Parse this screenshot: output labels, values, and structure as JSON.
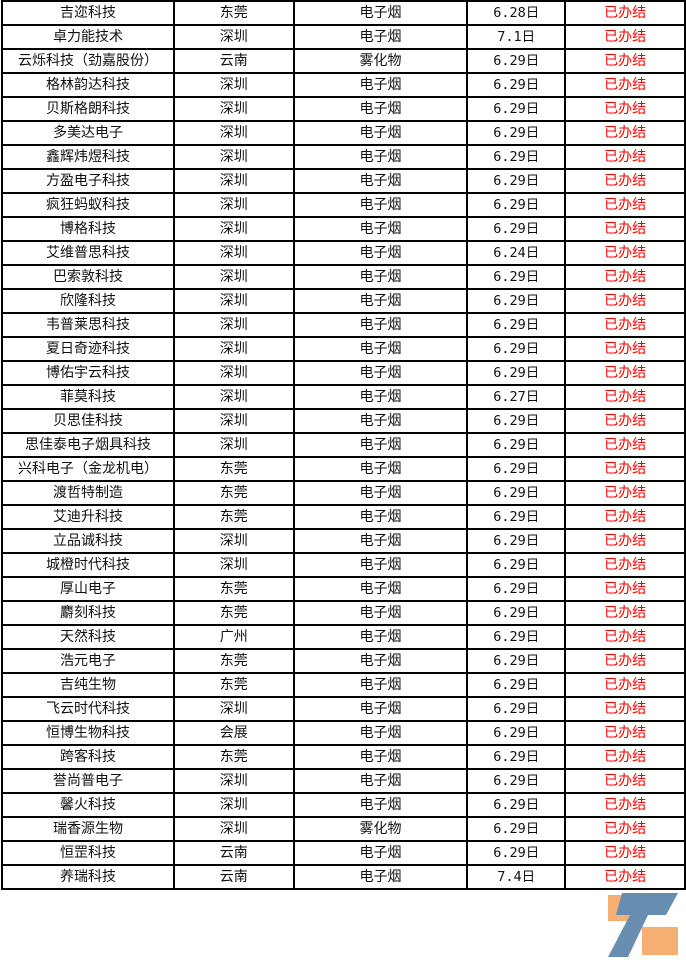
{
  "status_color": "#ff0000",
  "watermark_icon": "z-logo-watermark",
  "rows": [
    [
      "吉迩科技",
      "东莞",
      "电子烟",
      "6.28日",
      "已办结"
    ],
    [
      "卓力能技术",
      "深圳",
      "电子烟",
      "7.1日",
      "已办结"
    ],
    [
      "云烁科技（劲嘉股份）",
      "云南",
      "雾化物",
      "6.29日",
      "已办结"
    ],
    [
      "格林韵达科技",
      "深圳",
      "电子烟",
      "6.29日",
      "已办结"
    ],
    [
      "贝斯格朗科技",
      "深圳",
      "电子烟",
      "6.29日",
      "已办结"
    ],
    [
      "多美达电子",
      "深圳",
      "电子烟",
      "6.29日",
      "已办结"
    ],
    [
      "鑫辉炜煜科技",
      "深圳",
      "电子烟",
      "6.29日",
      "已办结"
    ],
    [
      "方盈电子科技",
      "深圳",
      "电子烟",
      "6.29日",
      "已办结"
    ],
    [
      "疯狂蚂蚁科技",
      "深圳",
      "电子烟",
      "6.29日",
      "已办结"
    ],
    [
      "博格科技",
      "深圳",
      "电子烟",
      "6.29日",
      "已办结"
    ],
    [
      "艾维普思科技",
      "深圳",
      "电子烟",
      "6.24日",
      "已办结"
    ],
    [
      "巴索敦科技",
      "深圳",
      "电子烟",
      "6.29日",
      "已办结"
    ],
    [
      "欣隆科技",
      "深圳",
      "电子烟",
      "6.29日",
      "已办结"
    ],
    [
      "韦普莱思科技",
      "深圳",
      "电子烟",
      "6.29日",
      "已办结"
    ],
    [
      "夏日奇迹科技",
      "深圳",
      "电子烟",
      "6.29日",
      "已办结"
    ],
    [
      "博佑宇云科技",
      "深圳",
      "电子烟",
      "6.29日",
      "已办结"
    ],
    [
      "菲莫科技",
      "深圳",
      "电子烟",
      "6.27日",
      "已办结"
    ],
    [
      "贝思佳科技",
      "深圳",
      "电子烟",
      "6.29日",
      "已办结"
    ],
    [
      "思佳泰电子烟具科技",
      "深圳",
      "电子烟",
      "6.29日",
      "已办结"
    ],
    [
      "兴科电子（金龙机电）",
      "东莞",
      "电子烟",
      "6.29日",
      "已办结"
    ],
    [
      "渡哲特制造",
      "东莞",
      "电子烟",
      "6.29日",
      "已办结"
    ],
    [
      "艾迪升科技",
      "东莞",
      "电子烟",
      "6.29日",
      "已办结"
    ],
    [
      "立品诚科技",
      "深圳",
      "电子烟",
      "6.29日",
      "已办结"
    ],
    [
      "城橙时代科技",
      "深圳",
      "电子烟",
      "6.29日",
      "已办结"
    ],
    [
      "厚山电子",
      "东莞",
      "电子烟",
      "6.29日",
      "已办结"
    ],
    [
      "麝刻科技",
      "东莞",
      "电子烟",
      "6.29日",
      "已办结"
    ],
    [
      "天然科技",
      "广州",
      "电子烟",
      "6.29日",
      "已办结"
    ],
    [
      "浩元电子",
      "东莞",
      "电子烟",
      "6.29日",
      "已办结"
    ],
    [
      "吉纯生物",
      "东莞",
      "电子烟",
      "6.29日",
      "已办结"
    ],
    [
      "飞云时代科技",
      "深圳",
      "电子烟",
      "6.29日",
      "已办结"
    ],
    [
      "恒博生物科技",
      "会展",
      "电子烟",
      "6.29日",
      "已办结"
    ],
    [
      "跨客科技",
      "东莞",
      "电子烟",
      "6.29日",
      "已办结"
    ],
    [
      "誉尚普电子",
      "深圳",
      "电子烟",
      "6.29日",
      "已办结"
    ],
    [
      "馨火科技",
      "深圳",
      "电子烟",
      "6.29日",
      "已办结"
    ],
    [
      "瑞香源生物",
      "深圳",
      "雾化物",
      "6.29日",
      "已办结"
    ],
    [
      "恒罡科技",
      "云南",
      "电子烟",
      "6.29日",
      "已办结"
    ],
    [
      "养瑞科技",
      "云南",
      "电子烟",
      "7.4日",
      "已办结"
    ]
  ]
}
